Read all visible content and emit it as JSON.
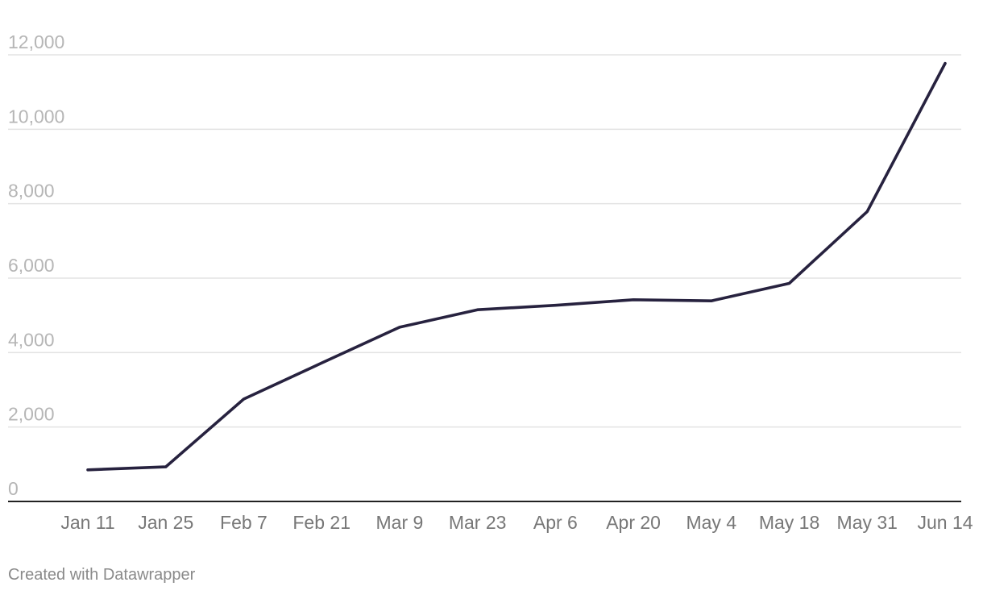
{
  "chart_data": {
    "type": "line",
    "title": "",
    "xlabel": "",
    "ylabel": "",
    "categories": [
      "Jan 11",
      "Jan 25",
      "Feb 7",
      "Feb 21",
      "Mar 9",
      "Mar 23",
      "Apr 6",
      "Apr 20",
      "May 4",
      "May 18",
      "May 31",
      "Jun 14"
    ],
    "series": [
      {
        "values": [
          850,
          930,
          2750,
          3720,
          4680,
          5150,
          5270,
          5420,
          5390,
          5860,
          7790,
          11770
        ]
      }
    ],
    "ylim": [
      0,
      12000
    ],
    "yticks": [
      0,
      2000,
      4000,
      6000,
      8000,
      10000,
      12000
    ],
    "ytick_labels": [
      "0",
      "2,000",
      "4,000",
      "6,000",
      "8,000",
      "10,000",
      "12,000"
    ],
    "grid": true,
    "legend": "none",
    "line_color": "#27223f"
  },
  "footer": {
    "credit": "Created with Datawrapper"
  }
}
